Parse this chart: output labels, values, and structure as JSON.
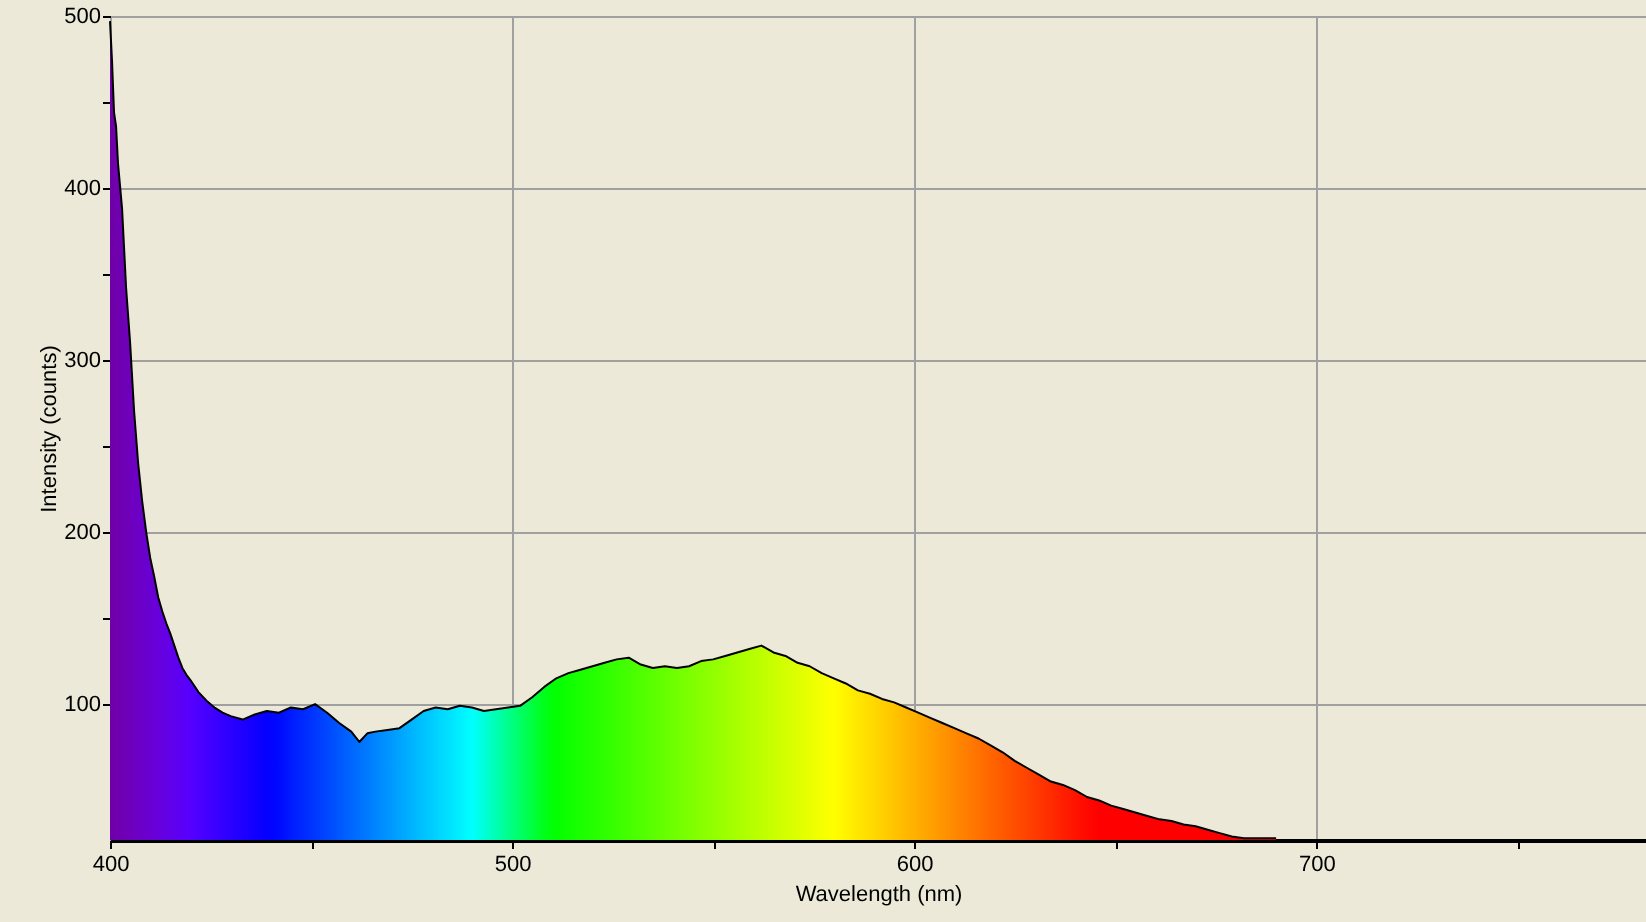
{
  "chart_data": {
    "type": "area",
    "xlabel": "Wavelength (nm)",
    "ylabel": "Intensity (counts)",
    "xlim": [
      400,
      782
    ],
    "ylim": [
      21,
      500
    ],
    "xticks": [
      400,
      {
        "value": 450,
        "label": null
      },
      500,
      {
        "value": 550,
        "label": null
      },
      600,
      {
        "value": 650,
        "label": null
      },
      700,
      {
        "value": 750,
        "label": null
      }
    ],
    "yticks": [
      100,
      {
        "value": 150,
        "label": null
      },
      200,
      {
        "value": 250,
        "label": null
      },
      300,
      {
        "value": 350,
        "label": null
      },
      400,
      {
        "value": 450,
        "label": null
      },
      500
    ],
    "grid": true,
    "series": [
      {
        "color": "#000000",
        "x": [
          400,
          400.5,
          401,
          401.5,
          402,
          403,
          404,
          405,
          406,
          407,
          408,
          409,
          410,
          411,
          412,
          413,
          414,
          415,
          416,
          417,
          418,
          419,
          420,
          422,
          424,
          426,
          428,
          430,
          433,
          436,
          439,
          442,
          445,
          448,
          451,
          454,
          457,
          460,
          462,
          464,
          466,
          469,
          472,
          475,
          478,
          481,
          484,
          487,
          490,
          493,
          496,
          499,
          502,
          505,
          508,
          511,
          514,
          517,
          520,
          523,
          526,
          529,
          532,
          535,
          538,
          541,
          544,
          547,
          550,
          553,
          556,
          559,
          562,
          565,
          568,
          571,
          574,
          577,
          580,
          583,
          586,
          589,
          592,
          595,
          598,
          601,
          604,
          607,
          610,
          613,
          616,
          619,
          622,
          625,
          628,
          631,
          634,
          637,
          640,
          643,
          646,
          649,
          652,
          655,
          658,
          661,
          664,
          667,
          670,
          673,
          676,
          679,
          682,
          685,
          688,
          690
        ],
        "values": [
          497,
          474,
          444,
          436,
          414,
          388,
          342,
          310,
          270,
          240,
          218,
          200,
          185,
          174,
          162,
          154,
          147,
          141,
          134,
          127,
          121,
          117,
          114,
          107,
          102,
          98,
          95,
          93,
          91,
          94,
          96,
          95,
          98,
          97,
          100,
          95,
          89,
          84,
          78,
          83,
          84,
          85,
          86,
          91,
          96,
          98,
          97,
          99,
          98,
          96,
          97,
          98,
          99,
          104,
          110,
          115,
          118,
          120,
          122,
          124,
          126,
          127,
          123,
          121,
          122,
          121,
          122,
          125,
          126,
          128,
          130,
          132,
          134,
          130,
          128,
          124,
          122,
          118,
          115,
          112,
          108,
          106,
          103,
          101,
          98,
          95,
          92,
          89,
          86,
          83,
          80,
          76,
          72,
          67,
          63,
          59,
          55,
          53,
          50,
          46,
          44,
          41,
          39,
          37,
          35,
          33,
          32,
          30,
          29,
          27,
          25,
          23,
          22,
          22,
          22,
          22
        ],
        "colors": [
          "#6e00a6",
          "#6f00a8",
          "#6f00aa",
          "#6f00ac",
          "#6f00af",
          "#6e00b3",
          "#6e00b8",
          "#6e00bc",
          "#6d00c1",
          "#6c00c5",
          "#6b00c9",
          "#6a00ce",
          "#6900d2",
          "#6800d7",
          "#6600db",
          "#6500e0",
          "#6300e4",
          "#6100e9",
          "#5f00ed",
          "#5d00f2",
          "#5a00f6",
          "#5800fb",
          "#5500ff",
          "#4d00ff",
          "#4400ff",
          "#3c00ff",
          "#3300ff",
          "#2b00ff",
          "#1e00ff",
          "#1100ff",
          "#0400ff",
          "#000aff",
          "#001aff",
          "#0029ff",
          "#0038ff",
          "#0047ff",
          "#0057ff",
          "#0066ff",
          "#0070ff",
          "#007aff",
          "#0085ff",
          "#0094ff",
          "#00a3ff",
          "#00b3ff",
          "#00c2ff",
          "#00d1ff",
          "#00e0ff",
          "#00f0ff",
          "#00ffff",
          "#00ffd9",
          "#00ffb3",
          "#00ff8c",
          "#00ff66",
          "#00ff40",
          "#00ff1a",
          "#04ff00",
          "#0fff00",
          "#1aff00",
          "#24ff00",
          "#2fff00",
          "#3aff00",
          "#45ff00",
          "#50ff00",
          "#5bff00",
          "#66ff00",
          "#71ff00",
          "#7cff00",
          "#87ff00",
          "#92ff00",
          "#9dff00",
          "#a8ff00",
          "#b3ff00",
          "#bdff00",
          "#c8ff00",
          "#d3ff00",
          "#deff00",
          "#e9ff00",
          "#f4ff00",
          "#ffff00",
          "#fff300",
          "#ffe700",
          "#ffdc00",
          "#ffd000",
          "#ffc400",
          "#ffb800",
          "#ffad00",
          "#ffa100",
          "#ff9500",
          "#ff8900",
          "#ff7e00",
          "#ff7200",
          "#ff6600",
          "#ff5a00",
          "#ff4e00",
          "#ff4300",
          "#ff3700",
          "#ff2b00",
          "#ff1f00",
          "#ff1400",
          "#ff0800",
          "#ff0000",
          "#ff0000",
          "#ff0000",
          "#ff0000",
          "#ff0000",
          "#ff0000",
          "#ff0000",
          "#ff0000",
          "#ff0000",
          "#ff0000",
          "#ff0000",
          "#ff0000",
          "#ff0000",
          "#ff0000",
          "#ff0000",
          "#ff0000"
        ]
      }
    ]
  }
}
